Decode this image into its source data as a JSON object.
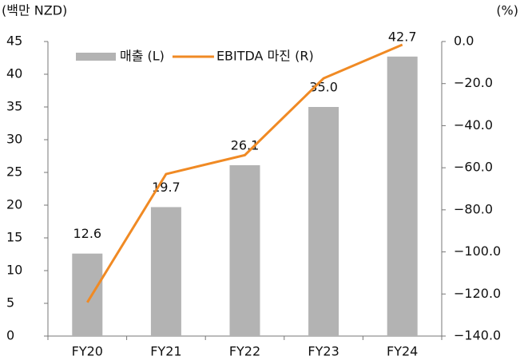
{
  "chart_data": {
    "type": "bar",
    "y_label": "(백만 NZD)",
    "y2_label": "(%)",
    "categories": [
      "FY20",
      "FY21",
      "FY22",
      "FY23",
      "FY24"
    ],
    "series": [
      {
        "name": "매출 (L)",
        "type": "bar",
        "color": "#b3b3b3",
        "values": [
          12.6,
          19.7,
          26.1,
          35.0,
          42.7
        ],
        "value_labels": [
          "12.6",
          "19.7",
          "26.1",
          "35.0",
          "42.7"
        ]
      },
      {
        "name": "EBITDA 마진 (R)",
        "type": "line",
        "axis": "y2",
        "color": "#f08a24",
        "values": [
          -124,
          -63,
          -54,
          -17.5,
          -1.5
        ]
      }
    ],
    "ylim": [
      0,
      45
    ],
    "yticks": [
      0,
      5,
      10,
      15,
      20,
      25,
      30,
      35,
      40,
      45
    ],
    "y2lim": [
      -140,
      0
    ],
    "y2ticks": [
      {
        "value": 0,
        "label": "0.0"
      },
      {
        "value": -20,
        "label": "−20.0"
      },
      {
        "value": -40,
        "label": "−40.0"
      },
      {
        "value": -60,
        "label": "−60.0"
      },
      {
        "value": -80,
        "label": "−80.0"
      },
      {
        "value": -100,
        "label": "−100.0"
      },
      {
        "value": -120,
        "label": "−120.0"
      },
      {
        "value": -140,
        "label": "−140.0"
      }
    ],
    "legend": "top-left",
    "grid": false
  }
}
